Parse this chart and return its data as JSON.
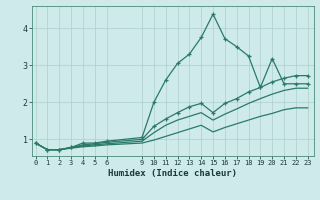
{
  "xlabel": "Humidex (Indice chaleur)",
  "bg_color": "#ceeaea",
  "grid_color": "#aecece",
  "line_color": "#2a7a6a",
  "x_ticks": [
    0,
    1,
    2,
    3,
    4,
    5,
    6,
    9,
    10,
    11,
    12,
    13,
    14,
    15,
    16,
    17,
    18,
    19,
    20,
    21,
    22,
    23
  ],
  "y_ticks": [
    1,
    2,
    3,
    4
  ],
  "xlim": [
    -0.3,
    23.5
  ],
  "ylim": [
    0.55,
    4.6
  ],
  "series": [
    {
      "x": [
        0,
        1,
        2,
        3,
        4,
        5,
        6,
        9,
        10,
        11,
        12,
        13,
        14,
        15,
        16,
        17,
        18,
        19,
        20,
        21,
        22,
        23
      ],
      "y": [
        0.9,
        0.72,
        0.72,
        0.78,
        0.9,
        0.9,
        0.95,
        1.05,
        2.0,
        2.6,
        3.05,
        3.3,
        3.75,
        4.38,
        3.72,
        3.5,
        3.25,
        2.4,
        3.18,
        2.5,
        2.5,
        2.5
      ],
      "marker": true
    },
    {
      "x": [
        0,
        1,
        2,
        3,
        4,
        5,
        6,
        9,
        10,
        11,
        12,
        13,
        14,
        15,
        16,
        17,
        18,
        19,
        20,
        21,
        22,
        23
      ],
      "y": [
        0.9,
        0.72,
        0.72,
        0.78,
        0.85,
        0.88,
        0.92,
        1.0,
        1.35,
        1.55,
        1.72,
        1.88,
        1.97,
        1.72,
        1.97,
        2.1,
        2.28,
        2.4,
        2.55,
        2.65,
        2.72,
        2.72
      ],
      "marker": true
    },
    {
      "x": [
        0,
        1,
        2,
        3,
        4,
        5,
        6,
        9,
        10,
        11,
        12,
        13,
        14,
        15,
        16,
        17,
        18,
        19,
        20,
        21,
        22,
        23
      ],
      "y": [
        0.9,
        0.72,
        0.72,
        0.78,
        0.82,
        0.85,
        0.88,
        0.95,
        1.18,
        1.38,
        1.52,
        1.62,
        1.72,
        1.52,
        1.68,
        1.82,
        1.97,
        2.1,
        2.22,
        2.32,
        2.38,
        2.38
      ],
      "marker": false
    },
    {
      "x": [
        0,
        1,
        2,
        3,
        4,
        5,
        6,
        9,
        10,
        11,
        12,
        13,
        14,
        15,
        16,
        17,
        18,
        19,
        20,
        21,
        22,
        23
      ],
      "y": [
        0.9,
        0.72,
        0.72,
        0.76,
        0.8,
        0.82,
        0.85,
        0.9,
        0.98,
        1.08,
        1.18,
        1.28,
        1.38,
        1.2,
        1.32,
        1.42,
        1.52,
        1.62,
        1.7,
        1.8,
        1.85,
        1.85
      ],
      "marker": false
    }
  ]
}
